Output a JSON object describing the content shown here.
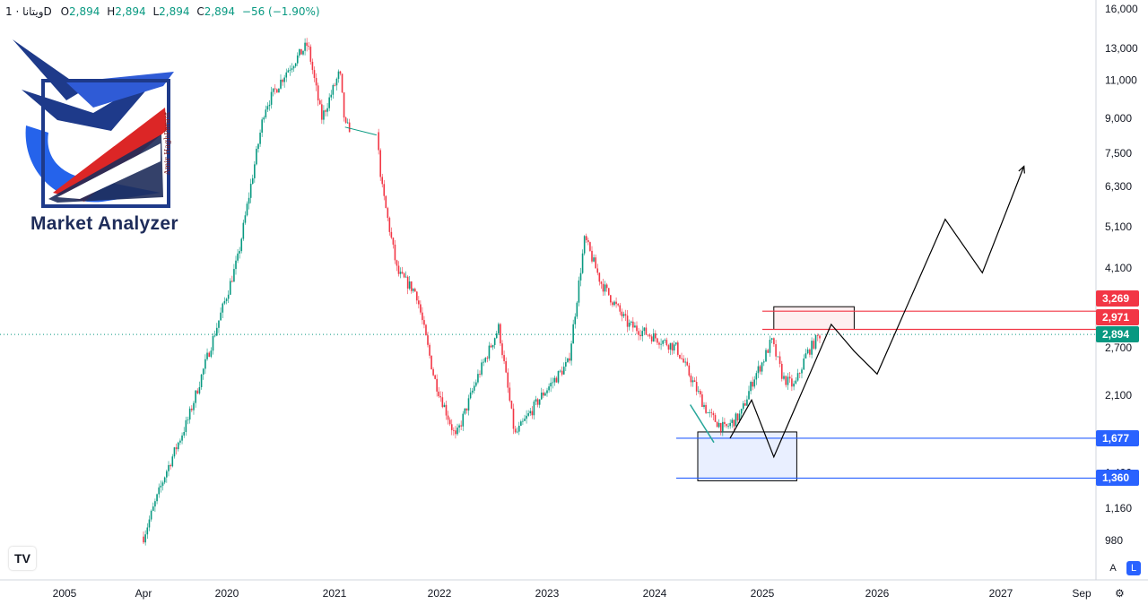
{
  "header": {
    "symbol": "ويتانا · 1D",
    "open_label": "O",
    "open": "2,894",
    "high_label": "H",
    "high": "2,894",
    "low_label": "L",
    "low": "2,894",
    "close_label": "C",
    "close": "2,894",
    "change": "−56 (−1.90%)"
  },
  "branding": {
    "name": "Market Analyzer",
    "author": "Amir HaghParast",
    "tv_logo": "tradingview-logo"
  },
  "controls": {
    "auto_label": "A",
    "log_label": "L",
    "settings_icon": "gear-icon"
  },
  "colors": {
    "up": "#089981",
    "down": "#f23645",
    "accent": "#2962ff",
    "resistance": "#f23645",
    "support": "#2962ff",
    "last_price": "#089981"
  },
  "chart_data": {
    "type": "candlestick",
    "scale": "log",
    "interval": "1D",
    "ylim": [
      900,
      16000
    ],
    "y_ticks": [
      980,
      1160,
      1400,
      1677,
      2100,
      2700,
      3269,
      4100,
      5100,
      6300,
      7500,
      9000,
      11000,
      13000,
      16000
    ],
    "y_tick_labels": [
      "980",
      "1,160",
      "1,400",
      "",
      "2,100",
      "2,700",
      "",
      "4,100",
      "5,100",
      "6,300",
      "7,500",
      "9,000",
      "11,000",
      "13,000",
      "16,000"
    ],
    "x_ticks": [
      "2005",
      "Apr",
      "2020",
      "2021",
      "2022",
      "2023",
      "2024",
      "2025",
      "2026",
      "2027",
      "Sep"
    ],
    "price_badges": [
      {
        "label": "3,269",
        "value": 3269,
        "color": "#f23645"
      },
      {
        "label": "2,971",
        "value": 2971,
        "color": "#f23645"
      },
      {
        "label": "2,894",
        "value": 2894,
        "color": "#089981"
      },
      {
        "label": "1,677",
        "value": 1677,
        "color": "#2962ff"
      },
      {
        "label": "1,360",
        "value": 1360,
        "color": "#2962ff"
      }
    ],
    "last_price": 2894,
    "price_path": [
      [
        2019.25,
        1000
      ],
      [
        2019.45,
        1400
      ],
      [
        2019.65,
        1850
      ],
      [
        2019.85,
        2700
      ],
      [
        2020.1,
        4300
      ],
      [
        2020.35,
        9500
      ],
      [
        2020.55,
        11500
      ],
      [
        2020.75,
        13300
      ],
      [
        2020.88,
        9000
      ],
      [
        2021.05,
        11500
      ],
      [
        2021.1,
        8600
      ],
      [
        2021.4,
        8400
      ],
      [
        2021.45,
        6300
      ],
      [
        2021.6,
        4000
      ],
      [
        2021.78,
        3600
      ],
      [
        2021.95,
        2300
      ],
      [
        2022.15,
        1680
      ],
      [
        2022.35,
        2300
      ],
      [
        2022.55,
        3000
      ],
      [
        2022.7,
        1700
      ],
      [
        2022.95,
        2100
      ],
      [
        2023.2,
        2500
      ],
      [
        2023.35,
        4800
      ],
      [
        2023.5,
        3800
      ],
      [
        2023.75,
        3050
      ],
      [
        2024.0,
        2850
      ],
      [
        2024.2,
        2700
      ],
      [
        2024.5,
        1900
      ],
      [
        2024.65,
        1760
      ],
      [
        2024.8,
        1900
      ],
      [
        2024.92,
        2300
      ],
      [
        2025.0,
        2500
      ],
      [
        2025.08,
        2800
      ],
      [
        2025.18,
        2300
      ],
      [
        2025.28,
        2200
      ],
      [
        2025.38,
        2600
      ],
      [
        2025.5,
        2894
      ]
    ],
    "zones": [
      {
        "kind": "resistance",
        "from": 2971,
        "to": 3269,
        "x_start": 2025.1,
        "x_end": 2025.8
      },
      {
        "kind": "support",
        "from": 1360,
        "to": 1677,
        "x_start": 2024.4,
        "x_end": 2025.3
      }
    ],
    "projection": [
      [
        2024.7,
        1677
      ],
      [
        2024.9,
        2050
      ],
      [
        2025.1,
        1520
      ],
      [
        2025.6,
        3050
      ],
      [
        2025.8,
        2650
      ],
      [
        2026.0,
        2350
      ],
      [
        2026.55,
        5300
      ],
      [
        2026.85,
        4000
      ],
      [
        2027.2,
        7000
      ]
    ]
  }
}
